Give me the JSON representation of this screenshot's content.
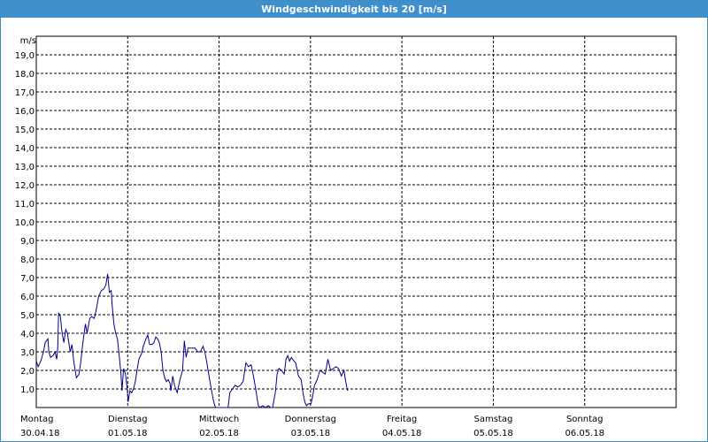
{
  "window": {
    "title": "Windgeschwindigkeit bis 20 [m/s]"
  },
  "colors": {
    "titlebar": "#3f8fcb",
    "series": "#00008b",
    "grid": "#000000"
  },
  "chart_data": {
    "type": "line",
    "title": "Windgeschwindigkeit bis 20 [m/s]",
    "ylabel": "m/s",
    "ylim": [
      0,
      20
    ],
    "yticks": [
      "1,0",
      "2,0",
      "3,0",
      "4,0",
      "5,0",
      "6,0",
      "7,0",
      "8,0",
      "9,0",
      "10,0",
      "11,0",
      "12,0",
      "13,0",
      "14,0",
      "15,0",
      "16,0",
      "17,0",
      "18,0",
      "19,0"
    ],
    "xlim": [
      0,
      7
    ],
    "x_unit": "days since Monday 30.04.18 00:00",
    "xticks": [
      {
        "day": "Montag",
        "date": "30.04.18"
      },
      {
        "day": "Dienstag",
        "date": "01.05.18"
      },
      {
        "day": "Mittwoch",
        "date": "02.05.18"
      },
      {
        "day": "Donnerstag",
        "date": "03.05.18"
      },
      {
        "day": "Freitag",
        "date": "04.05.18"
      },
      {
        "day": "Samstag",
        "date": "05.05.18"
      },
      {
        "day": "Sonntag",
        "date": "06.05.18"
      }
    ],
    "grid": true,
    "series": [
      {
        "values": [
          [
            0.0,
            2.5
          ],
          [
            0.02,
            2.2
          ],
          [
            0.049,
            2.5
          ],
          [
            0.078,
            3.0
          ],
          [
            0.098,
            3.5
          ],
          [
            0.127,
            3.7
          ],
          [
            0.137,
            3.0
          ],
          [
            0.156,
            2.7
          ],
          [
            0.185,
            2.8
          ],
          [
            0.205,
            3.0
          ],
          [
            0.224,
            2.6
          ],
          [
            0.234,
            3.2
          ],
          [
            0.244,
            5.1
          ],
          [
            0.263,
            4.9
          ],
          [
            0.283,
            4.0
          ],
          [
            0.302,
            3.5
          ],
          [
            0.322,
            4.2
          ],
          [
            0.341,
            4.0
          ],
          [
            0.371,
            3.0
          ],
          [
            0.39,
            3.4
          ],
          [
            0.41,
            2.5
          ],
          [
            0.439,
            1.6
          ],
          [
            0.468,
            1.8
          ],
          [
            0.488,
            2.5
          ],
          [
            0.507,
            3.4
          ],
          [
            0.537,
            4.5
          ],
          [
            0.556,
            4.0
          ],
          [
            0.585,
            4.8
          ],
          [
            0.605,
            4.9
          ],
          [
            0.634,
            4.8
          ],
          [
            0.654,
            5.2
          ],
          [
            0.683,
            6.0
          ],
          [
            0.712,
            6.3
          ],
          [
            0.741,
            6.4
          ],
          [
            0.761,
            6.6
          ],
          [
            0.78,
            7.2
          ],
          [
            0.8,
            6.2
          ],
          [
            0.82,
            6.3
          ],
          [
            0.829,
            5.6
          ],
          [
            0.849,
            4.5
          ],
          [
            0.868,
            4.0
          ],
          [
            0.888,
            3.7
          ],
          [
            0.907,
            2.8
          ],
          [
            0.927,
            1.8
          ],
          [
            0.937,
            0.9
          ],
          [
            0.956,
            2.1
          ],
          [
            0.976,
            1.8
          ],
          [
            0.995,
            1.0
          ],
          [
            1.005,
            0.3
          ],
          [
            1.024,
            0.9
          ],
          [
            1.044,
            0.8
          ],
          [
            1.063,
            1.0
          ],
          [
            1.083,
            1.4
          ],
          [
            1.102,
            2.0
          ],
          [
            1.122,
            2.6
          ],
          [
            1.151,
            2.9
          ],
          [
            1.171,
            3.3
          ],
          [
            1.2,
            3.7
          ],
          [
            1.22,
            3.9
          ],
          [
            1.239,
            3.4
          ],
          [
            1.268,
            3.4
          ],
          [
            1.288,
            3.5
          ],
          [
            1.307,
            3.8
          ],
          [
            1.327,
            3.7
          ],
          [
            1.346,
            3.5
          ],
          [
            1.366,
            3.0
          ],
          [
            1.385,
            2.0
          ],
          [
            1.405,
            1.6
          ],
          [
            1.424,
            1.4
          ],
          [
            1.444,
            1.5
          ],
          [
            1.463,
            1.3
          ],
          [
            1.473,
            0.9
          ],
          [
            1.493,
            1.7
          ],
          [
            1.512,
            1.2
          ],
          [
            1.541,
            0.8
          ],
          [
            1.571,
            1.5
          ],
          [
            1.6,
            2.0
          ],
          [
            1.62,
            3.6
          ],
          [
            1.639,
            2.7
          ],
          [
            1.659,
            3.2
          ],
          [
            1.688,
            3.2
          ],
          [
            1.707,
            3.2
          ],
          [
            1.737,
            3.2
          ],
          [
            1.766,
            3.0
          ],
          [
            1.795,
            3.0
          ],
          [
            1.824,
            3.3
          ],
          [
            1.844,
            3.0
          ],
          [
            1.863,
            2.5
          ],
          [
            1.893,
            1.6
          ],
          [
            1.922,
            0.8
          ],
          [
            1.941,
            0.3
          ],
          [
            1.961,
            0.0
          ],
          [
            2.0,
            0.0
          ],
          [
            2.098,
            0.0
          ],
          [
            2.117,
            0.8
          ],
          [
            2.146,
            1.0
          ],
          [
            2.176,
            1.2
          ],
          [
            2.205,
            1.1
          ],
          [
            2.234,
            1.2
          ],
          [
            2.263,
            1.4
          ],
          [
            2.293,
            2.4
          ],
          [
            2.322,
            2.2
          ],
          [
            2.351,
            2.3
          ],
          [
            2.38,
            1.6
          ],
          [
            2.41,
            0.7
          ],
          [
            2.429,
            0.1
          ],
          [
            2.449,
            0.0
          ],
          [
            2.478,
            0.1
          ],
          [
            2.507,
            0.0
          ],
          [
            2.537,
            0.1
          ],
          [
            2.566,
            0.0
          ],
          [
            2.585,
            0.0
          ],
          [
            2.615,
            0.8
          ],
          [
            2.634,
            1.8
          ],
          [
            2.654,
            2.1
          ],
          [
            2.683,
            2.0
          ],
          [
            2.712,
            1.8
          ],
          [
            2.732,
            2.6
          ],
          [
            2.751,
            2.8
          ],
          [
            2.771,
            2.5
          ],
          [
            2.79,
            2.7
          ],
          [
            2.82,
            2.5
          ],
          [
            2.839,
            2.4
          ],
          [
            2.868,
            1.7
          ],
          [
            2.898,
            1.5
          ],
          [
            2.917,
            0.8
          ],
          [
            2.937,
            0.3
          ],
          [
            2.956,
            0.1
          ],
          [
            2.976,
            0.2
          ],
          [
            3.005,
            0.2
          ],
          [
            3.024,
            0.6
          ],
          [
            3.044,
            1.2
          ],
          [
            3.073,
            1.5
          ],
          [
            3.102,
            2.0
          ],
          [
            3.132,
            1.9
          ],
          [
            3.161,
            1.8
          ],
          [
            3.19,
            2.6
          ],
          [
            3.22,
            2.0
          ],
          [
            3.249,
            2.1
          ],
          [
            3.278,
            2.2
          ],
          [
            3.307,
            2.1
          ],
          [
            3.337,
            1.7
          ],
          [
            3.366,
            2.0
          ],
          [
            3.385,
            1.4
          ],
          [
            3.405,
            0.9
          ]
        ]
      }
    ]
  }
}
